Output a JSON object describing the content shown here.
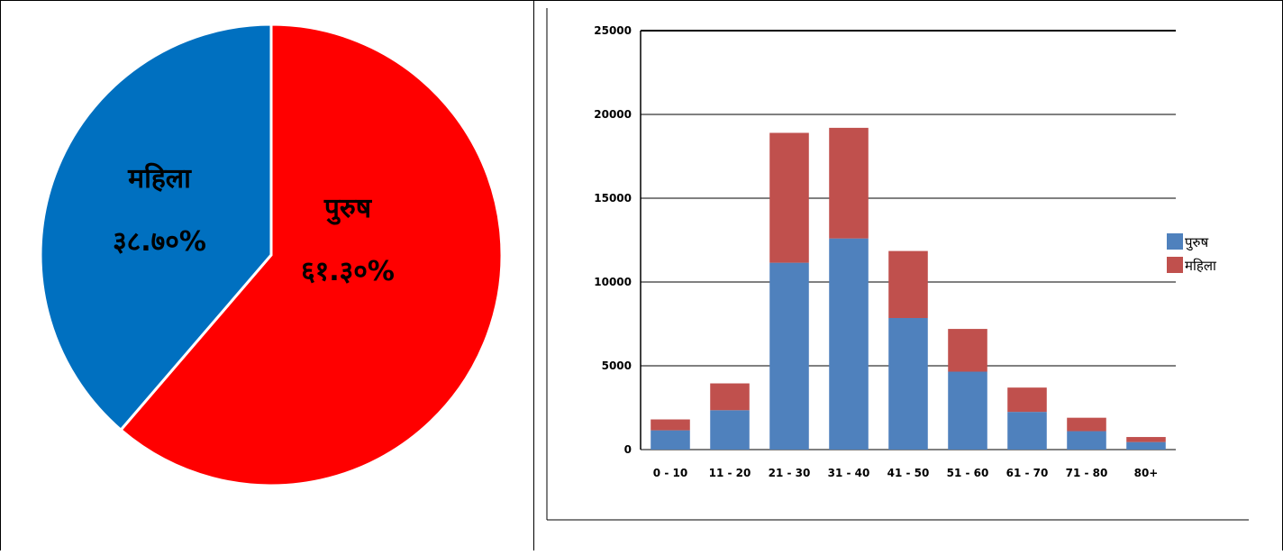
{
  "chart_data": [
    {
      "type": "pie",
      "title": "",
      "slices": [
        {
          "label": "पुरुष",
          "value_label": "६१.३०%",
          "value": 61.3,
          "color": "#ff0000"
        },
        {
          "label": "महिला",
          "value_label": "३८.७०%",
          "value": 38.7,
          "color": "#0070c0"
        }
      ],
      "start": "12 o'clock",
      "direction": "clockwise"
    },
    {
      "type": "bar",
      "stacked": true,
      "title": "",
      "xlabel": "",
      "ylabel": "",
      "categories": [
        "0 - 10",
        "11 - 20",
        "21 - 30",
        "31 - 40",
        "41 - 50",
        "51 - 60",
        "61 - 70",
        "71 - 80",
        "80+"
      ],
      "series": [
        {
          "name": "पुरुष",
          "color": "#4f81bd",
          "values": [
            1150,
            2350,
            11150,
            12600,
            7850,
            4650,
            2250,
            1100,
            450
          ]
        },
        {
          "name": "महिला",
          "color": "#c0504d",
          "values": [
            650,
            1600,
            7750,
            6600,
            4000,
            2550,
            1450,
            800,
            300
          ]
        }
      ],
      "ylim": [
        0,
        25000
      ],
      "yticks": [
        "0",
        "5000",
        "10000",
        "15000",
        "20000",
        "25000"
      ],
      "grid": true,
      "legend_position": "right"
    }
  ]
}
